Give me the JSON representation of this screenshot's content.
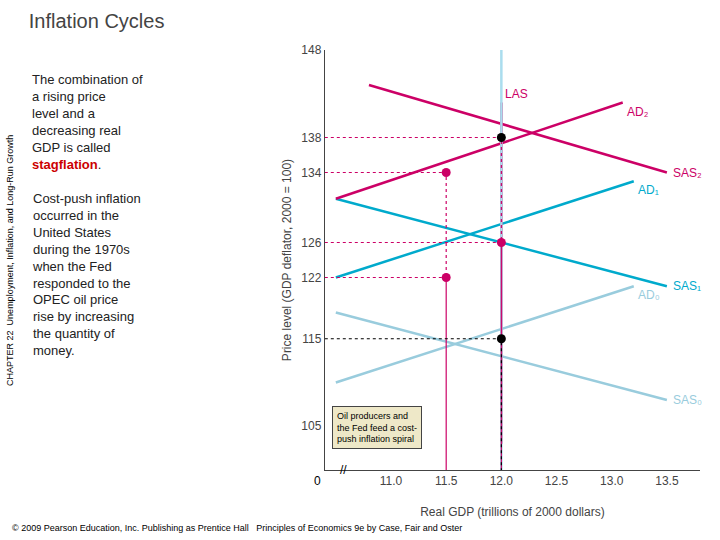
{
  "chart_data": {
    "type": "line",
    "title": "Inflation Cycles",
    "xlabel": "Real GDP (trillions of 2000 dollars)",
    "ylabel": "Price level (GDP deflator, 2000 = 100)",
    "xlim": [
      10.4,
      13.8
    ],
    "ylim": [
      100,
      148
    ],
    "xticks": [
      {
        "value": 11.0,
        "label": "11.0"
      },
      11.5,
      {
        "value": 12.0,
        "label": "12.0"
      },
      12.5,
      {
        "value": 13.0,
        "label": "13.0"
      },
      13.5
    ],
    "yticks": [
      105,
      115,
      122,
      126,
      134,
      138,
      148
    ],
    "grid": false,
    "series": [
      {
        "name": "SAS₀",
        "color": "#99CCDD",
        "x": [
          10.5,
          13.5
        ],
        "values": [
          118,
          108
        ]
      },
      {
        "name": "SAS₁",
        "color": "#00AACC",
        "x": [
          10.5,
          13.5
        ],
        "values": [
          131,
          121
        ]
      },
      {
        "name": "SAS₂",
        "color": "#CC0066",
        "x": [
          10.8,
          13.5
        ],
        "values": [
          144,
          134
        ]
      },
      {
        "name": "AD₀",
        "color": "#99CCDD",
        "x": [
          10.5,
          13.2
        ],
        "values": [
          110,
          121
        ]
      },
      {
        "name": "AD₁",
        "color": "#00AACC",
        "x": [
          10.5,
          13.2
        ],
        "values": [
          122,
          133
        ]
      },
      {
        "name": "AD₂",
        "color": "#CC0066",
        "x": [
          10.5,
          13.1
        ],
        "values": [
          131,
          142
        ]
      },
      {
        "name": "LAS",
        "color": "#CC0066",
        "x": [
          12.0,
          12.0
        ],
        "values": [
          103,
          142
        ]
      },
      {
        "color": "#AADDEE",
        "x": [
          12.0,
          12.0
        ],
        "values": [
          100,
          148
        ]
      },
      {
        "color": "#CC0066",
        "line_style": "dotted",
        "x": [
          10.4,
          11.5,
          11.5
        ],
        "values": [
          122,
          122,
          100
        ]
      },
      {
        "color": "#CC0066",
        "line_style": "dotted",
        "x": [
          10.4,
          12.0,
          12.0
        ],
        "values": [
          126,
          126,
          100
        ]
      },
      {
        "color": "#CC0066",
        "line_style": "dotted",
        "x": [
          10.4,
          11.5,
          11.5
        ],
        "values": [
          134,
          134,
          100
        ]
      },
      {
        "color": "#CC0066",
        "line_style": "dotted",
        "x": [
          10.4,
          12.0,
          12.0
        ],
        "values": [
          138,
          138,
          100
        ]
      },
      {
        "color": "#000000",
        "line_style": "dotted",
        "x": [
          10.4,
          12.0,
          12.0
        ],
        "values": [
          115,
          115,
          100
        ]
      },
      {
        "type": "scatter",
        "marker": "circle",
        "x": [
          12.0,
          11.5,
          12.0,
          11.5,
          12.0
        ],
        "values": [
          115,
          122,
          126,
          134,
          138
        ],
        "colors": [
          "black",
          "#CC0066",
          "#CC0066",
          "#CC0066",
          "black"
        ]
      }
    ],
    "annotations": [
      {
        "text": [
          "The combination of\na rising price\nlevel and a\ndecreasing real\nGDP is called\n",
          {
            "text": "stagflation",
            "color": "#CC0000"
          },
          "."
        ]
      },
      {
        "text": "Cost-push inflation\noccurred in the\nUnited States\nduring the 1970s\nwhen the Fed\nresponded to the\nOPEC oil price\nrise by increasing\nthe quantity of\nmoney."
      },
      {
        "text": "Oil producers and\nthe Fed feed a cost-\npush inflation spiral",
        "color": "#EEE8C8"
      },
      {
        "text": "CHAPTER 22  Unemployment, Inflation, and Long-Run Growth"
      },
      {
        "text": "© 2009 Pearson Education, Inc. Publishing as Prentice Hall   Principles of Economics 9e by Case, Fair and Oster"
      },
      {
        "text": "0"
      },
      {
        "text": "//"
      }
    ]
  }
}
